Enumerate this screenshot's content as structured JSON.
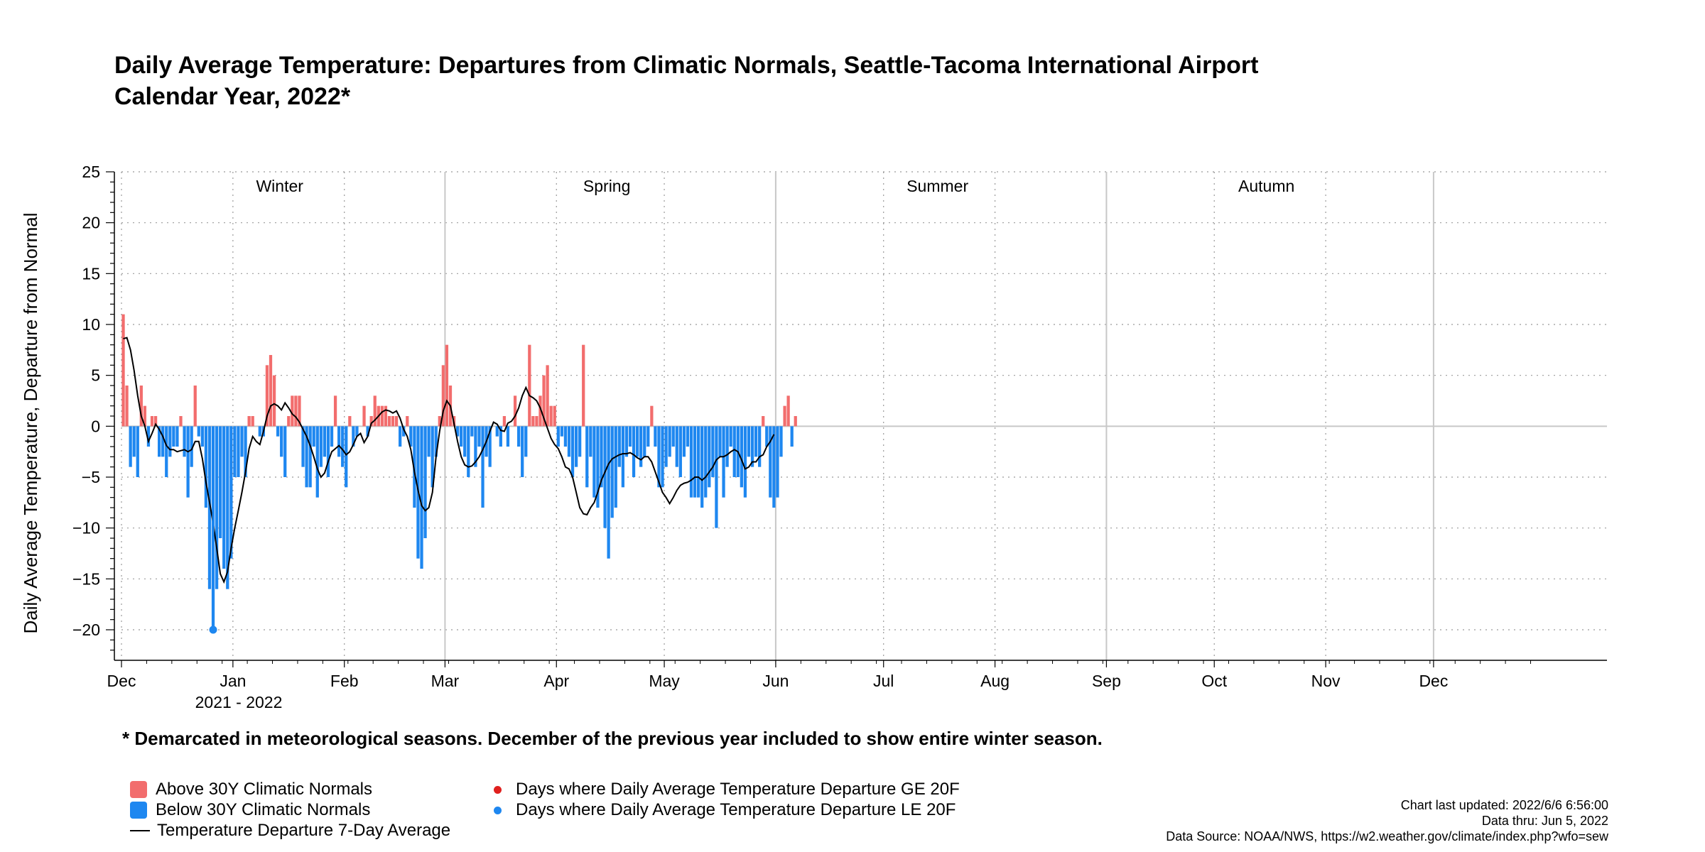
{
  "title_line1": "Daily Average Temperature: Departures from Climatic Normals, Seattle-Tacoma International Airport",
  "title_line2": "Calendar Year, 2022*",
  "footnote": "* Demarcated in meteorological seasons. December of the previous year included to show entire winter season.",
  "legend": {
    "above": "Above 30Y Climatic Normals",
    "below": "Below 30Y Climatic Normals",
    "avg": "Temperature Departure 7-Day Average",
    "ge20": "Days where Daily Average Temperature Departure GE 20F",
    "le20": "Days where Daily Average Temperature Departure LE 20F"
  },
  "meta": {
    "updated": "Chart last updated: 2022/6/6 6:56:00",
    "thru": "Data thru: Jun 5, 2022",
    "source": "Data Source: NOAA/NWS, https://w2.weather.gov/climate/index.php?wfo=sew"
  },
  "colors": {
    "above": "#f26d6d",
    "below": "#1e87f0",
    "avg": "#000000",
    "ge20": "#e0201e",
    "le20": "#1e87f0",
    "grid": "#999999"
  },
  "chart_data": {
    "type": "bar",
    "title": "Daily Average Temperature: Departures from Climatic Normals, Seattle-Tacoma International Airport",
    "ylabel": "Daily Average Temperature, Departure from Normal",
    "ylim": [
      -23,
      25
    ],
    "yticks": [
      -20,
      -15,
      -10,
      -5,
      0,
      5,
      10,
      15,
      20,
      25
    ],
    "ytick_labels": [
      "−20",
      "−15",
      "−10",
      "−5",
      "0",
      "5",
      "10",
      "15",
      "20",
      "25"
    ],
    "x_months": [
      {
        "label": "Dec",
        "day": 0
      },
      {
        "label": "Jan",
        "day": 31
      },
      {
        "label": "Feb",
        "day": 62
      },
      {
        "label": "Mar",
        "day": 90
      },
      {
        "label": "Apr",
        "day": 121
      },
      {
        "label": "May",
        "day": 151
      },
      {
        "label": "Jun",
        "day": 182
      },
      {
        "label": "Jul",
        "day": 212
      },
      {
        "label": "Aug",
        "day": 243
      },
      {
        "label": "Sep",
        "day": 274
      },
      {
        "label": "Oct",
        "day": 304
      },
      {
        "label": "Nov",
        "day": 335
      },
      {
        "label": "Dec",
        "day": 365
      }
    ],
    "x_range": [
      0,
      396
    ],
    "year_label": "2021 - 2022",
    "seasons": [
      {
        "label": "Winter",
        "start": 0,
        "end": 90
      },
      {
        "label": "Spring",
        "start": 90,
        "end": 182
      },
      {
        "label": "Summer",
        "start": 182,
        "end": 274
      },
      {
        "label": "Autumn",
        "start": 274,
        "end": 365
      }
    ],
    "series": [
      {
        "name": "Daily departure",
        "start_date": "2021-12-01",
        "end_date": "2022-06-05",
        "values": [
          11,
          4,
          -4,
          -3,
          -5,
          4,
          2,
          -2,
          1,
          1,
          -3,
          -3,
          -5,
          -3,
          -2,
          -2,
          1,
          -3,
          -7,
          -4,
          4,
          -1,
          -2,
          -8,
          -16,
          -20,
          -16,
          -11,
          -14,
          -16,
          -13,
          -5,
          -5,
          -3,
          -5,
          1,
          1,
          0,
          -1,
          -1,
          6,
          7,
          5,
          -1,
          -3,
          -5,
          1,
          3,
          3,
          3,
          -4,
          -6,
          -6,
          -2,
          -7,
          -4,
          -3,
          -5,
          -2,
          3,
          -3,
          -4,
          -6,
          1,
          -2,
          -1,
          0,
          2,
          -1,
          1,
          3,
          2,
          2,
          2,
          1,
          1,
          1,
          -2,
          -1,
          1,
          -2,
          -8,
          -13,
          -14,
          -11,
          -3,
          -6,
          -3,
          1,
          6,
          8,
          4,
          1,
          -1,
          -2,
          -3,
          -5,
          -1,
          -4,
          -2,
          -8,
          -3,
          -4,
          0,
          -1,
          -2,
          1,
          -2,
          0,
          3,
          -2,
          -5,
          -3,
          8,
          1,
          1,
          3,
          5,
          6,
          2,
          2,
          -2,
          -1,
          -2,
          -3,
          -5,
          -4,
          -3,
          8,
          -6,
          -3,
          -7,
          -8,
          -6,
          -10,
          -13,
          -9,
          -8,
          -4,
          -6,
          -3,
          -2,
          -5,
          -3,
          -4,
          -3,
          -2,
          2,
          -2,
          -6,
          -6,
          -4,
          -3,
          -2,
          -4,
          -5,
          -3,
          -2,
          -7,
          -7,
          -7,
          -8,
          -7,
          -6,
          -5,
          -10,
          -3,
          -7,
          -4,
          -2,
          -5,
          -5,
          -6,
          -7,
          -3,
          -4,
          -3,
          -4,
          1,
          -2,
          -7,
          -8,
          -7,
          -3,
          2,
          3,
          -2,
          1
        ]
      },
      {
        "name": "7-Day Average",
        "points": [
          [
            0,
            8.6
          ],
          [
            1,
            8.7
          ],
          [
            2,
            7.5
          ],
          [
            3,
            5.5
          ],
          [
            4,
            3.0
          ],
          [
            5,
            1.0
          ],
          [
            6,
            0
          ],
          [
            7,
            -1.5
          ],
          [
            8,
            -0.7
          ],
          [
            9,
            0.2
          ],
          [
            10,
            -0.3
          ],
          [
            11,
            -1.0
          ],
          [
            12,
            -1.9
          ],
          [
            13,
            -2.3
          ],
          [
            14,
            -2.3
          ],
          [
            15,
            -2.5
          ],
          [
            16,
            -2.4
          ],
          [
            17,
            -2.3
          ],
          [
            18,
            -2.5
          ],
          [
            19,
            -2.3
          ],
          [
            20,
            -1.5
          ],
          [
            21,
            -1.5
          ],
          [
            22,
            -3.2
          ],
          [
            23,
            -5.5
          ],
          [
            24,
            -7.5
          ],
          [
            25,
            -9.5
          ],
          [
            26,
            -12
          ],
          [
            27,
            -14.5
          ],
          [
            28,
            -15.3
          ],
          [
            29,
            -14.3
          ],
          [
            30,
            -12.0
          ],
          [
            31,
            -10.0
          ],
          [
            32,
            -8.3
          ],
          [
            33,
            -6.5
          ],
          [
            34,
            -4.5
          ],
          [
            35,
            -2.2
          ],
          [
            36,
            -1.0
          ],
          [
            37,
            -1.5
          ],
          [
            38,
            -1.8
          ],
          [
            39,
            -0.5
          ],
          [
            40,
            1.0
          ],
          [
            41,
            2.0
          ],
          [
            42,
            2.2
          ],
          [
            43,
            2.0
          ],
          [
            44,
            1.6
          ],
          [
            45,
            2.3
          ],
          [
            46,
            1.8
          ],
          [
            47,
            1.2
          ],
          [
            48,
            0.9
          ],
          [
            49,
            0.4
          ],
          [
            50,
            -0.3
          ],
          [
            51,
            -1.0
          ],
          [
            52,
            -1.9
          ],
          [
            53,
            -3.0
          ],
          [
            54,
            -4.2
          ],
          [
            55,
            -5.0
          ],
          [
            56,
            -4.6
          ],
          [
            57,
            -3.5
          ],
          [
            58,
            -2.5
          ],
          [
            59,
            -2.2
          ],
          [
            60,
            -1.9
          ],
          [
            61,
            -2.3
          ],
          [
            62,
            -2.8
          ],
          [
            63,
            -2.5
          ],
          [
            64,
            -1.8
          ],
          [
            65,
            -1.0
          ],
          [
            66,
            -0.7
          ],
          [
            67,
            -1.6
          ],
          [
            68,
            -1.0
          ],
          [
            69,
            0.3
          ],
          [
            70,
            0.6
          ],
          [
            71,
            1.0
          ],
          [
            72,
            1.4
          ],
          [
            73,
            1.6
          ],
          [
            74,
            1.5
          ],
          [
            75,
            1.3
          ],
          [
            76,
            1.5
          ],
          [
            77,
            0.8
          ],
          [
            78,
            -0.3
          ],
          [
            79,
            -1.0
          ],
          [
            80,
            -2.3
          ],
          [
            81,
            -4.5
          ],
          [
            82,
            -6.3
          ],
          [
            83,
            -7.8
          ],
          [
            84,
            -8.3
          ],
          [
            85,
            -8.0
          ],
          [
            86,
            -6.5
          ],
          [
            87,
            -3.0
          ],
          [
            88,
            -0.5
          ],
          [
            89,
            1.5
          ],
          [
            90,
            2.5
          ],
          [
            91,
            2.0
          ],
          [
            92,
            0.3
          ],
          [
            93,
            -1.5
          ],
          [
            94,
            -3.0
          ],
          [
            95,
            -3.8
          ],
          [
            96,
            -4.0
          ],
          [
            97,
            -3.9
          ],
          [
            98,
            -3.5
          ],
          [
            99,
            -3.0
          ],
          [
            100,
            -2.3
          ],
          [
            101,
            -1.5
          ],
          [
            102,
            -0.5
          ],
          [
            103,
            0.4
          ],
          [
            104,
            0.2
          ],
          [
            105,
            -0.4
          ],
          [
            106,
            -0.5
          ],
          [
            107,
            0.3
          ],
          [
            108,
            0.5
          ],
          [
            109,
            1.0
          ],
          [
            110,
            1.8
          ],
          [
            111,
            3.0
          ],
          [
            112,
            3.8
          ],
          [
            113,
            3.0
          ],
          [
            114,
            2.8
          ],
          [
            115,
            2.5
          ],
          [
            116,
            1.8
          ],
          [
            117,
            0.8
          ],
          [
            118,
            -0.2
          ],
          [
            119,
            -1.2
          ],
          [
            120,
            -1.8
          ],
          [
            121,
            -2.2
          ],
          [
            122,
            -3.0
          ],
          [
            123,
            -4.0
          ],
          [
            124,
            -4.2
          ],
          [
            125,
            -5.0
          ],
          [
            126,
            -6.5
          ],
          [
            127,
            -8.0
          ],
          [
            128,
            -8.6
          ],
          [
            129,
            -8.7
          ],
          [
            130,
            -8.0
          ],
          [
            131,
            -7.5
          ],
          [
            132,
            -6.5
          ],
          [
            133,
            -5.3
          ],
          [
            134,
            -4.5
          ],
          [
            135,
            -3.7
          ],
          [
            136,
            -3.2
          ],
          [
            137,
            -3.0
          ],
          [
            138,
            -2.8
          ],
          [
            139,
            -2.7
          ],
          [
            140,
            -2.7
          ],
          [
            141,
            -2.6
          ],
          [
            142,
            -2.8
          ],
          [
            143,
            -3.1
          ],
          [
            144,
            -3.3
          ],
          [
            145,
            -3.0
          ],
          [
            146,
            -3.0
          ],
          [
            147,
            -3.5
          ],
          [
            148,
            -4.5
          ],
          [
            149,
            -5.5
          ],
          [
            150,
            -6.5
          ],
          [
            151,
            -7.0
          ],
          [
            152,
            -7.6
          ],
          [
            153,
            -7.0
          ],
          [
            154,
            -6.3
          ],
          [
            155,
            -5.8
          ],
          [
            156,
            -5.6
          ],
          [
            157,
            -5.5
          ],
          [
            158,
            -5.3
          ],
          [
            159,
            -5.0
          ],
          [
            160,
            -5.0
          ],
          [
            161,
            -5.3
          ],
          [
            162,
            -5.0
          ],
          [
            163,
            -4.5
          ],
          [
            164,
            -4.0
          ],
          [
            165,
            -3.3
          ],
          [
            166,
            -3.0
          ],
          [
            167,
            -3.0
          ],
          [
            168,
            -2.8
          ],
          [
            169,
            -2.5
          ],
          [
            170,
            -2.3
          ],
          [
            171,
            -2.5
          ],
          [
            172,
            -3.3
          ],
          [
            173,
            -4.2
          ],
          [
            174,
            -4.0
          ],
          [
            175,
            -3.5
          ],
          [
            176,
            -3.5
          ],
          [
            177,
            -3.0
          ],
          [
            178,
            -2.8
          ],
          [
            179,
            -2.0
          ],
          [
            180,
            -1.5
          ],
          [
            181,
            -0.8
          ]
        ]
      }
    ],
    "extreme_points": [
      {
        "day": 25,
        "value": -20,
        "kind": "le20"
      }
    ]
  }
}
